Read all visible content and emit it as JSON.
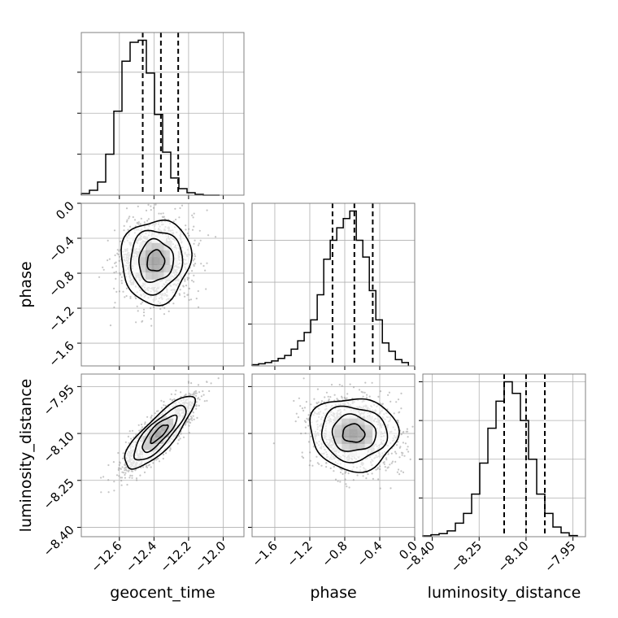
{
  "chart_data": {
    "type": "corner",
    "parameters": [
      {
        "name": "geocent_time",
        "label": "geocent_time",
        "range": [
          -12.82,
          -11.88
        ],
        "ticks": [
          -12.6,
          -12.4,
          -12.2,
          -12.0
        ],
        "tick_labels": [
          "−12.6",
          "−12.4",
          "−12.2",
          "−12.0"
        ],
        "quantiles": [
          -12.465,
          -12.36,
          -12.26
        ],
        "histogram": {
          "bin_width": 0.047,
          "edges": [
            -12.82,
            -12.773,
            -12.726,
            -12.679,
            -12.632,
            -12.585,
            -12.538,
            -12.491,
            -12.444,
            -12.397,
            -12.35,
            -12.303,
            -12.256,
            -12.209,
            -12.162,
            -12.115,
            -12.068,
            -12.021
          ],
          "counts": [
            4,
            12,
            32,
            100,
            205,
            327,
            373,
            378,
            298,
            197,
            105,
            42,
            16,
            6,
            2,
            0,
            0
          ]
        }
      },
      {
        "name": "phase",
        "label": "phase",
        "range": [
          -1.86,
          0.0
        ],
        "ticks": [
          -1.6,
          -1.2,
          -0.8,
          -0.4,
          0.0
        ],
        "tick_labels": [
          "−1.6",
          "−1.2",
          "−0.8",
          "−0.4",
          "0.0"
        ],
        "quantiles": [
          -0.94,
          -0.69,
          -0.48
        ],
        "histogram": {
          "bin_width": 0.0745,
          "edges": [
            -1.86,
            -1.7855,
            -1.711,
            -1.6365,
            -1.562,
            -1.4875,
            -1.413,
            -1.3385,
            -1.264,
            -1.1895,
            -1.115,
            -1.0405,
            -0.966,
            -0.8915,
            -0.817,
            -0.7425,
            -0.668,
            -0.5935,
            -0.519,
            -0.4445,
            -0.37,
            -0.2955,
            -0.221,
            -0.1465,
            -0.072
          ],
          "counts": [
            3,
            5,
            8,
            12,
            18,
            25,
            40,
            60,
            80,
            110,
            170,
            255,
            300,
            330,
            352,
            370,
            300,
            260,
            180,
            110,
            55,
            35,
            15,
            8
          ]
        }
      },
      {
        "name": "luminosity_distance",
        "label": "luminosity_distance",
        "range": [
          -8.43,
          -7.91
        ],
        "ticks": [
          -8.4,
          -8.25,
          -8.1,
          -7.95
        ],
        "tick_labels": [
          "−8.40",
          "−8.25",
          "−8.10",
          "−7.95"
        ],
        "quantiles": [
          -8.17,
          -8.1,
          -8.04
        ],
        "histogram": {
          "bin_width": 0.026,
          "edges": [
            -8.43,
            -8.404,
            -8.378,
            -8.352,
            -8.326,
            -8.3,
            -8.274,
            -8.248,
            -8.222,
            -8.196,
            -8.17,
            -8.144,
            -8.118,
            -8.092,
            -8.066,
            -8.04,
            -8.014,
            -7.988,
            -7.962,
            -7.936
          ],
          "counts": [
            2,
            5,
            8,
            15,
            35,
            60,
            110,
            190,
            280,
            350,
            400,
            370,
            300,
            200,
            110,
            60,
            25,
            10,
            3
          ]
        }
      }
    ],
    "pairs": [
      {
        "x": "geocent_time",
        "y": "phase",
        "center": [
          -12.39,
          -0.66
        ],
        "sd": [
          0.1,
          0.24
        ],
        "rho": 0.05,
        "contour_levels": [
          "0.5",
          "1",
          "1.5",
          "2"
        ]
      },
      {
        "x": "geocent_time",
        "y": "luminosity_distance",
        "center": [
          -12.37,
          -8.1
        ],
        "sd": [
          0.1,
          0.058
        ],
        "rho": 0.82,
        "contour_levels": [
          "0.5",
          "1",
          "1.5",
          "2"
        ]
      },
      {
        "x": "phase",
        "y": "luminosity_distance",
        "center": [
          -0.7,
          -8.1
        ],
        "sd": [
          0.25,
          0.058
        ],
        "rho": -0.05,
        "contour_levels": [
          "0.5",
          "1",
          "1.5",
          "2"
        ]
      }
    ],
    "grid": true,
    "legend": "none"
  },
  "style": {
    "line_color": "#000000",
    "grid_color": "#b0b0b0",
    "frame_color": "#808080",
    "point_color": "#7f7f7f"
  }
}
